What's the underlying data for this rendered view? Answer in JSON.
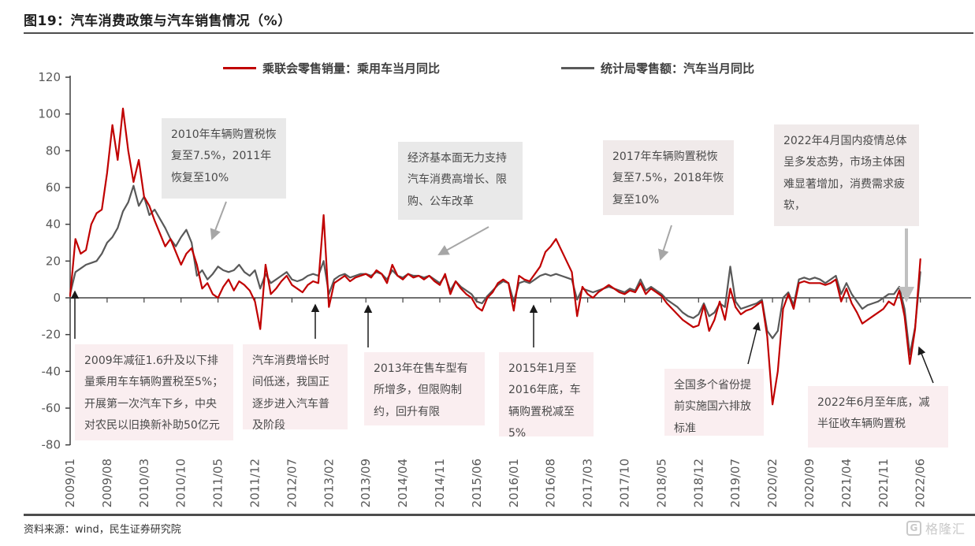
{
  "header": {
    "title": "图19：汽车消费政策与汽车销售情况（%）"
  },
  "legend": [
    {
      "label": "乘联会零售销量：乘用车当月同比",
      "color": "#c00000"
    },
    {
      "label": "统计局零售额：汽车当月同比",
      "color": "#595959"
    }
  ],
  "annotations": [
    {
      "id": "tax-2010",
      "text": "2010年车辆购置税恢复至7.5%，2011年恢复至10%"
    },
    {
      "id": "economy-2014",
      "text": "经济基本面无力支持汽车消费高增长、限购、公车改革"
    },
    {
      "id": "tax-2017",
      "text": "2017年车辆购置税恢复至7.5%，2018年恢复至10%"
    },
    {
      "id": "covid-2022-04",
      "text": "2022年4月国内疫情总体呈多发态势，市场主体困难显著增加，消费需求疲软，"
    },
    {
      "id": "policy-2009",
      "text": "2009年减征1.6升及以下排量乘用车车辆购置税至5%；开展第一次汽车下乡，中央对农民以旧换新补助50亿元"
    },
    {
      "id": "slowdown-2012",
      "text": "汽车消费增长时间低迷，我国正逐步进入汽车普及阶段"
    },
    {
      "id": "models-2013",
      "text": "2013年在售车型有所增多，但限购制约，回升有限"
    },
    {
      "id": "tax-2015",
      "text": "2015年1月至2016年底，车辆购置税减至5%"
    },
    {
      "id": "guo6-2019",
      "text": "全国多个省份提前实施国六排放标准"
    },
    {
      "id": "tax-2022",
      "text": "2022年6月至年底，减半征收车辆购置税"
    }
  ],
  "footer": {
    "source": "资料来源：wind，民生证券研究院",
    "watermark": "格隆汇",
    "watermark_logo": "G"
  },
  "chart_data": {
    "type": "line",
    "title": "汽车消费政策与汽车销售情况（%）",
    "x_unit": "month",
    "x_range": [
      "2009/01",
      "2022/06"
    ],
    "x_tick_labels": [
      "2009/01",
      "2009/08",
      "2010/03",
      "2010/10",
      "2011/05",
      "2011/12",
      "2012/07",
      "2013/02",
      "2013/09",
      "2014/04",
      "2014/11",
      "2015/06",
      "2016/01",
      "2016/08",
      "2017/03",
      "2017/10",
      "2018/05",
      "2018/12",
      "2019/07",
      "2020/02",
      "2020/09",
      "2021/04",
      "2021/11",
      "2022/06"
    ],
    "ylim": [
      -80,
      120
    ],
    "y_ticks": [
      120,
      100,
      80,
      60,
      40,
      20,
      0,
      -20,
      -40,
      -60,
      -80
    ],
    "grid": false,
    "legend_position": "top",
    "series": [
      {
        "name": "乘联会零售销量：乘用车当月同比",
        "color": "#c00000",
        "values": [
          1,
          32,
          24,
          26,
          40,
          46,
          48,
          68,
          94,
          75,
          103,
          80,
          63,
          75,
          55,
          50,
          42,
          35,
          28,
          32,
          25,
          18,
          24,
          27,
          18,
          5,
          8,
          2,
          0,
          6,
          10,
          4,
          9,
          7,
          4,
          -2,
          -17,
          18,
          2,
          5,
          9,
          12,
          7,
          5,
          3,
          7,
          9,
          8,
          45,
          -5,
          8,
          10,
          12,
          9,
          11,
          12,
          13,
          11,
          15,
          13,
          8,
          18,
          12,
          10,
          13,
          11,
          12,
          10,
          12,
          9,
          7,
          13,
          2,
          9,
          5,
          2,
          0,
          -5,
          -7,
          0,
          3,
          8,
          10,
          8,
          -7,
          12,
          10,
          9,
          13,
          17,
          25,
          28,
          32,
          26,
          20,
          14,
          -10,
          6,
          2,
          0,
          3,
          5,
          7,
          5,
          3,
          2,
          4,
          3,
          8,
          2,
          5,
          3,
          1,
          -3,
          -6,
          -9,
          -12,
          -14,
          -16,
          -15,
          -4,
          -18,
          -12,
          -2,
          -12,
          5,
          -5,
          -9,
          -7,
          -6,
          -4,
          -2,
          -21,
          -58,
          -40,
          -6,
          2,
          -6,
          8,
          9,
          8,
          8,
          8,
          7,
          8,
          10,
          -2,
          5,
          -3,
          -8,
          -14,
          -12,
          -10,
          -8,
          -6,
          -2,
          -4,
          4,
          -10,
          -36,
          -17,
          21
        ]
      },
      {
        "name": "统计局零售额：汽车当月同比",
        "color": "#595959",
        "values": [
          2,
          14,
          16,
          18,
          19,
          20,
          24,
          30,
          33,
          38,
          47,
          52,
          61,
          50,
          55,
          45,
          48,
          43,
          38,
          32,
          28,
          33,
          37,
          30,
          12,
          15,
          10,
          13,
          17,
          15,
          14,
          15,
          18,
          14,
          12,
          15,
          5,
          13,
          8,
          10,
          12,
          14,
          10,
          9,
          10,
          12,
          13,
          12,
          20,
          2,
          10,
          12,
          13,
          11,
          12,
          13,
          13,
          12,
          14,
          13,
          10,
          15,
          12,
          11,
          13,
          12,
          12,
          11,
          12,
          10,
          8,
          12,
          4,
          9,
          6,
          4,
          2,
          -2,
          -3,
          1,
          4,
          7,
          9,
          8,
          -2,
          8,
          9,
          8,
          10,
          12,
          13,
          12,
          13,
          12,
          11,
          10,
          -1,
          5,
          4,
          3,
          4,
          5,
          6,
          5,
          4,
          3,
          5,
          4,
          10,
          4,
          6,
          4,
          2,
          -1,
          -3,
          -5,
          -8,
          -10,
          -11,
          -9,
          -3,
          -10,
          -8,
          -3,
          -5,
          17,
          -2,
          -6,
          -5,
          -4,
          -3,
          -1,
          -18,
          -22,
          -18,
          0,
          3,
          -4,
          10,
          11,
          10,
          11,
          10,
          8,
          10,
          12,
          2,
          8,
          2,
          -2,
          -6,
          -4,
          -3,
          -2,
          0,
          2,
          2,
          6,
          -6,
          -31,
          -16,
          14
        ]
      }
    ]
  }
}
